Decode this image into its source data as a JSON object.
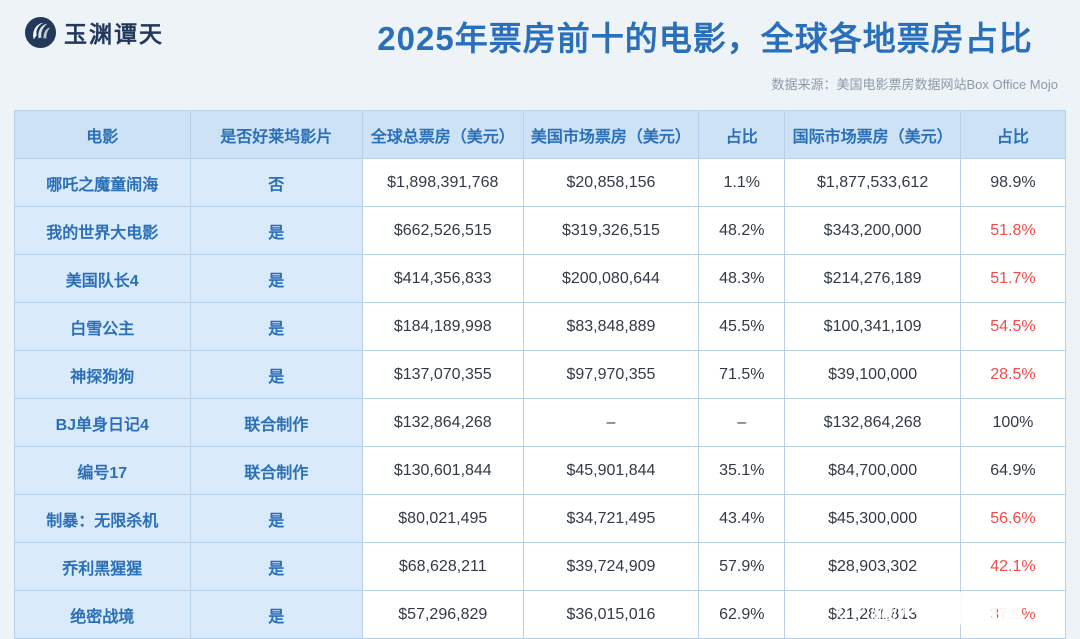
{
  "brand": {
    "name": "玉渊谭天"
  },
  "header": {
    "title": "2025年票房前十的电影，全球各地票房占比",
    "source": "数据来源：美国电影票房数据网站Box Office Mojo"
  },
  "watermark": {
    "text": "@玉渊谭天",
    "icon_text": "du"
  },
  "colors": {
    "title_blue": "#2a6fba",
    "table_header_bg": "#cde3f5",
    "label_cell_bg": "#d9eafa",
    "label_text_blue": "#2b6fb7",
    "highlight_red": "#ef4c4c",
    "brand_navy": "#22395c",
    "page_bg": "#eef3f8"
  },
  "chart_data": {
    "type": "table",
    "title": "2025年票房前十的电影，全球各地票房占比",
    "source": "数据来源：美国电影票房数据网站Box Office Mojo",
    "columns": [
      "电影",
      "是否好莱坞影片",
      "全球总票房（美元）",
      "美国市场票房（美元）",
      "占比",
      "国际市场票房（美元）",
      "占比"
    ],
    "column_keys": [
      "movie",
      "hollywood",
      "global",
      "us",
      "us_share",
      "intl",
      "intl_share"
    ],
    "label_cols": [
      "movie",
      "hollywood"
    ],
    "rows": [
      {
        "movie": "哪吒之魔童闹海",
        "hollywood": "否",
        "global": "$1,898,391,768",
        "us": "$20,858,156",
        "us_share": "1.1%",
        "intl": "$1,877,533,612",
        "intl_share": "98.9%",
        "intl_share_red": false
      },
      {
        "movie": "我的世界大电影",
        "hollywood": "是",
        "global": "$662,526,515",
        "us": "$319,326,515",
        "us_share": "48.2%",
        "intl": "$343,200,000",
        "intl_share": "51.8%",
        "intl_share_red": true
      },
      {
        "movie": "美国队长4",
        "hollywood": "是",
        "global": "$414,356,833",
        "us": "$200,080,644",
        "us_share": "48.3%",
        "intl": "$214,276,189",
        "intl_share": "51.7%",
        "intl_share_red": true
      },
      {
        "movie": "白雪公主",
        "hollywood": "是",
        "global": "$184,189,998",
        "us": "$83,848,889",
        "us_share": "45.5%",
        "intl": "$100,341,109",
        "intl_share": "54.5%",
        "intl_share_red": true
      },
      {
        "movie": "神探狗狗",
        "hollywood": "是",
        "global": "$137,070,355",
        "us": "$97,970,355",
        "us_share": "71.5%",
        "intl": "$39,100,000",
        "intl_share": "28.5%",
        "intl_share_red": true
      },
      {
        "movie": "BJ单身日记4",
        "hollywood": "联合制作",
        "global": "$132,864,268",
        "us": "–",
        "us_share": "–",
        "intl": "$132,864,268",
        "intl_share": "100%",
        "intl_share_red": false
      },
      {
        "movie": "编号17",
        "hollywood": "联合制作",
        "global": "$130,601,844",
        "us": "$45,901,844",
        "us_share": "35.1%",
        "intl": "$84,700,000",
        "intl_share": "64.9%",
        "intl_share_red": false
      },
      {
        "movie": "制暴：无限杀机",
        "hollywood": "是",
        "global": "$80,021,495",
        "us": "$34,721,495",
        "us_share": "43.4%",
        "intl": "$45,300,000",
        "intl_share": "56.6%",
        "intl_share_red": true
      },
      {
        "movie": "乔利黑猩猩",
        "hollywood": "是",
        "global": "$68,628,211",
        "us": "$39,724,909",
        "us_share": "57.9%",
        "intl": "$28,903,302",
        "intl_share": "42.1%",
        "intl_share_red": true
      },
      {
        "movie": "绝密战境",
        "hollywood": "是",
        "global": "$57,296,829",
        "us": "$36,015,016",
        "us_share": "62.9%",
        "intl": "$21,281,813",
        "intl_share": "37.1%",
        "intl_share_red": true
      }
    ]
  }
}
